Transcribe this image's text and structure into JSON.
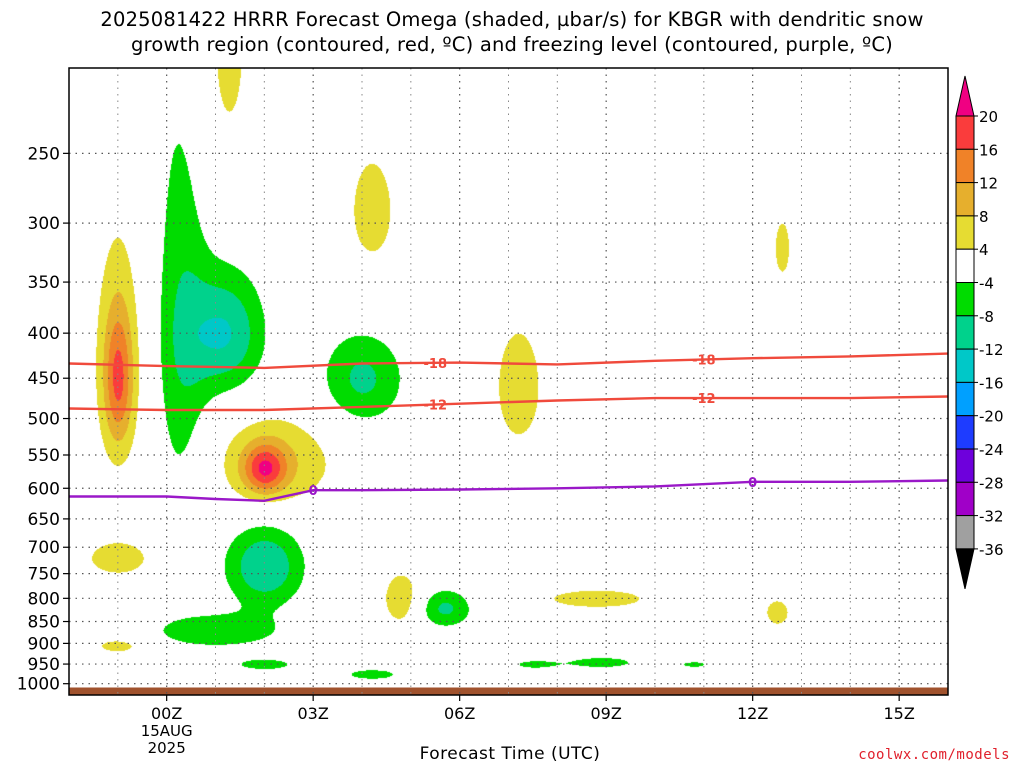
{
  "title_line1": "2025081422 HRRR Forecast Omega (shaded, µbar/s) for KBGR with dendritic snow",
  "title_line2": "growth region (contoured, red, ºC) and freezing level (contoured, purple, ºC)",
  "credit": "coolwx.com/models",
  "chart_data": {
    "type": "heatmap",
    "title": "2025081422 HRRR Forecast Omega (shaded, µbar/s) for KBGR with dendritic snow growth region (contoured, red, ºC) and freezing level (contoured, purple, ºC)",
    "xlabel": "Forecast Time (UTC)",
    "ylabel": "",
    "x_unit": "hours from 2025-08-14 22Z",
    "xlim": [
      0,
      18
    ],
    "x_ticks": [
      {
        "x": 2,
        "label": "00Z",
        "sub": [
          "15AUG",
          "2025"
        ]
      },
      {
        "x": 5,
        "label": "03Z"
      },
      {
        "x": 8,
        "label": "06Z"
      },
      {
        "x": 11,
        "label": "09Z"
      },
      {
        "x": 14,
        "label": "12Z"
      },
      {
        "x": 17,
        "label": "15Z"
      }
    ],
    "y_ticks": [
      250,
      300,
      350,
      400,
      450,
      500,
      550,
      600,
      650,
      700,
      750,
      800,
      850,
      900,
      950,
      1000
    ],
    "y_scale": "log-pressure (inverted)",
    "ylim": [
      1030,
      200
    ],
    "grid": true,
    "colorbar": {
      "units": "µbar/s",
      "labels": [
        "20",
        "16",
        "12",
        "8",
        "4",
        "-4",
        "-8",
        "-12",
        "-16",
        "-20",
        "-24",
        "-28",
        "-32",
        "-36"
      ],
      "levels": [
        -36,
        -32,
        -28,
        -24,
        -20,
        -16,
        -12,
        -8,
        -4,
        4,
        8,
        12,
        16,
        20
      ],
      "colors": [
        "#000000",
        "#a0a0a0",
        "#a000c8",
        "#6e00dc",
        "#1e3cff",
        "#00a0ff",
        "#00c8c8",
        "#00d28c",
        "#00dc00",
        "#ffffff",
        "#e6dc32",
        "#e6af2d",
        "#f08228",
        "#fa3c3c",
        "#f00082"
      ]
    },
    "shading": [
      {
        "x": 1,
        "p": 425,
        "sx": 0.4,
        "sp": 110,
        "value": 6
      },
      {
        "x": 1,
        "p": 450,
        "sx": 0.2,
        "sp": 55,
        "value": 12
      },
      {
        "x": 3.2,
        "p": 190,
        "sx": 0.5,
        "sp": 60,
        "value": 5
      },
      {
        "x": 6.2,
        "p": 290,
        "sx": 0.55,
        "sp": 50,
        "value": 5
      },
      {
        "x": 2.3,
        "p": 400,
        "sx": 0.4,
        "sp": 170,
        "value": -7
      },
      {
        "x": 3.2,
        "p": 400,
        "sx": 0.55,
        "sp": 45,
        "value": -12
      },
      {
        "x": 6.0,
        "p": 450,
        "sx": 0.6,
        "sp": 40,
        "value": -9
      },
      {
        "x": 4.2,
        "p": 560,
        "sx": 0.9,
        "sp": 50,
        "value": 8
      },
      {
        "x": 4.0,
        "p": 570,
        "sx": 0.3,
        "sp": 25,
        "value": 14
      },
      {
        "x": 1,
        "p": 720,
        "sx": 0.5,
        "sp": 25,
        "value": 7
      },
      {
        "x": 4.0,
        "p": 735,
        "sx": 0.55,
        "sp": 55,
        "value": -12
      },
      {
        "x": 6.8,
        "p": 800,
        "sx": 0.3,
        "sp": 45,
        "value": 7
      },
      {
        "x": 7.7,
        "p": 820,
        "sx": 0.4,
        "sp": 30,
        "value": -9
      },
      {
        "x": 3,
        "p": 870,
        "sx": 1.0,
        "sp": 30,
        "value": -7
      },
      {
        "x": 1,
        "p": 905,
        "sx": 0.4,
        "sp": 15,
        "value": 6
      },
      {
        "x": 4,
        "p": 950,
        "sx": 0.5,
        "sp": 12,
        "value": -6
      },
      {
        "x": 9.2,
        "p": 460,
        "sx": 0.6,
        "sp": 90,
        "value": 5
      },
      {
        "x": 10.8,
        "p": 800,
        "sx": 1.3,
        "sp": 25,
        "value": 5
      },
      {
        "x": 14.5,
        "p": 830,
        "sx": 0.3,
        "sp": 35,
        "value": 5
      },
      {
        "x": 14.6,
        "p": 320,
        "sx": 0.2,
        "sp": 30,
        "value": 5
      },
      {
        "x": 9.5,
        "p": 950,
        "sx": 0.4,
        "sp": 10,
        "value": -5
      },
      {
        "x": 10.9,
        "p": 945,
        "sx": 0.6,
        "sp": 12,
        "value": -6
      },
      {
        "x": 12.8,
        "p": 950,
        "sx": 0.3,
        "sp": 8,
        "value": -5
      },
      {
        "x": 6.2,
        "p": 975,
        "sx": 0.4,
        "sp": 10,
        "value": -7
      }
    ],
    "contours": [
      {
        "label": "-18",
        "color": "#f04a3c",
        "x": [
          0,
          2,
          4,
          6,
          8,
          10,
          12,
          14,
          16,
          18
        ],
        "p": [
          433,
          436,
          438,
          433,
          432,
          434,
          430,
          427,
          425,
          422
        ]
      },
      {
        "label": "-12",
        "color": "#f04a3c",
        "x": [
          0,
          2,
          4,
          6,
          8,
          10,
          12,
          14,
          16,
          18
        ],
        "p": [
          487,
          489,
          489,
          485,
          481,
          477,
          474,
          474,
          474,
          472
        ]
      },
      {
        "label": "0",
        "color": "#9a18c8",
        "x": [
          0,
          2,
          3,
          4,
          5,
          6,
          8,
          10,
          12,
          14,
          16,
          18
        ],
        "p": [
          613,
          613,
          617,
          620,
          603,
          603,
          602,
          600,
          597,
          590,
          590,
          588
        ]
      }
    ],
    "terrain": {
      "color": "#a0522d",
      "p": [
        1010,
        1000
      ]
    }
  }
}
